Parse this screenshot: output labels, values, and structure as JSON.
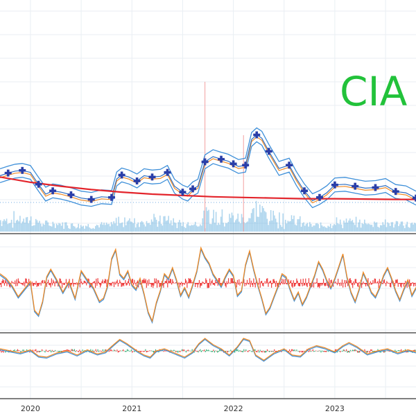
{
  "ticker": "CIA",
  "colors": {
    "ticker": "#22c23a",
    "trend": "#e3242b",
    "band": "#3d8fd9",
    "fast": "#f08a24",
    "marker": "#2a3ea8",
    "volume": "#6fb4e0",
    "histogram": "#ee3b3b",
    "grid": "#e9eef3",
    "separator": "#555555"
  },
  "chart_data": {
    "type": "line",
    "x_ticks": [
      "2020",
      "2021",
      "2022",
      "2023"
    ],
    "x_range": [
      2019.7,
      2023.8
    ],
    "panels": [
      {
        "name": "price",
        "series": [
          {
            "x": [
              2019.7,
              2019.78,
              2019.85,
              2019.92,
              2020.0,
              2020.08,
              2020.15,
              2020.22,
              2020.3,
              2020.4,
              2020.5,
              2020.6,
              2020.7,
              2020.8,
              2020.85,
              2020.9,
              2020.97,
              2021.05,
              2021.12,
              2021.2,
              2021.28,
              2021.35,
              2021.42,
              2021.5,
              2021.55,
              2021.6,
              2021.65,
              2021.72,
              2021.8,
              2021.88,
              2021.95,
              2022.0,
              2022.05,
              2022.12,
              2022.18,
              2022.23,
              2022.28,
              2022.35,
              2022.45,
              2022.55,
              2022.62,
              2022.7,
              2022.78,
              2022.85,
              2022.92,
              2023.0,
              2023.1,
              2023.2,
              2023.3,
              2023.4,
              2023.5,
              2023.6,
              2023.7,
              2023.8
            ],
            "y": [
              6.8,
              7.2,
              7.5,
              7.6,
              7.3,
              5.5,
              4.0,
              4.5,
              4.3,
              3.9,
              3.4,
              3.2,
              3.6,
              3.5,
              6.3,
              6.9,
              6.6,
              6.0,
              6.8,
              6.6,
              6.7,
              7.3,
              5.2,
              4.3,
              4.0,
              4.8,
              5.2,
              8.9,
              9.7,
              9.3,
              9.0,
              8.6,
              8.2,
              8.4,
              12.3,
              13.0,
              12.5,
              10.5,
              7.9,
              8.4,
              6.4,
              4.5,
              3.0,
              3.5,
              4.2,
              5.4,
              5.5,
              5.2,
              4.9,
              5.0,
              5.3,
              4.4,
              4.2,
              3.4
            ]
          },
          {
            "x": [
              2019.7,
              2020.0,
              2020.3,
              2020.6,
              2020.9,
              2021.2,
              2021.5,
              2021.8,
              2022.1,
              2022.4,
              2022.7,
              2023.0,
              2023.3,
              2023.6,
              2023.8
            ],
            "y": [
              6.6,
              5.8,
              5.2,
              4.7,
              4.3,
              4.0,
              3.8,
              3.6,
              3.5,
              3.4,
              3.3,
              3.3,
              3.25,
              3.2,
              3.2
            ]
          }
        ]
      },
      {
        "name": "oscillator",
        "series": [
          {
            "x": [
              2019.7,
              2019.76,
              2019.82,
              2019.88,
              2019.94,
              2020.0,
              2020.04,
              2020.08,
              2020.12,
              2020.16,
              2020.2,
              2020.26,
              2020.32,
              2020.38,
              2020.44,
              2020.5,
              2020.56,
              2020.62,
              2020.68,
              2020.72,
              2020.76,
              2020.8,
              2020.84,
              2020.88,
              2020.92,
              2020.96,
              2021.0,
              2021.04,
              2021.08,
              2021.12,
              2021.16,
              2021.2,
              2021.24,
              2021.28,
              2021.32,
              2021.36,
              2021.4,
              2021.44,
              2021.48,
              2021.52,
              2021.56,
              2021.6,
              2021.64,
              2021.68,
              2021.72,
              2021.76,
              2021.8,
              2021.84,
              2021.88,
              2021.92,
              2021.96,
              2022.0,
              2022.04,
              2022.08,
              2022.12,
              2022.16,
              2022.2,
              2022.24,
              2022.28,
              2022.32,
              2022.36,
              2022.4,
              2022.44,
              2022.48,
              2022.52,
              2022.56,
              2022.6,
              2022.64,
              2022.68,
              2022.72,
              2022.76,
              2022.8,
              2022.84,
              2022.88,
              2022.92,
              2022.96,
              2023.0,
              2023.04,
              2023.08,
              2023.12,
              2023.16,
              2023.2,
              2023.24,
              2023.28,
              2023.32,
              2023.36,
              2023.4,
              2023.44,
              2023.48,
              2023.52,
              2023.56,
              2023.6,
              2023.64,
              2023.68,
              2023.72,
              2023.76,
              2023.8
            ],
            "y": [
              0.6,
              0.3,
              -0.2,
              -0.9,
              -0.4,
              0.1,
              -1.8,
              -2.1,
              -1.2,
              0.4,
              0.9,
              0.2,
              -0.6,
              0.1,
              -1.0,
              0.8,
              0.2,
              -0.3,
              -1.2,
              -1.0,
              -0.2,
              1.6,
              2.2,
              0.6,
              0.3,
              0.8,
              -0.1,
              -0.4,
              0.3,
              -0.7,
              -1.9,
              -2.5,
              -1.3,
              -0.5,
              0.6,
              0.3,
              1.0,
              0.2,
              -0.8,
              -0.3,
              -0.9,
              -0.1,
              0.8,
              2.3,
              1.7,
              1.3,
              0.6,
              0.2,
              -0.2,
              0.4,
              0.9,
              0.5,
              -0.8,
              -0.5,
              1.2,
              2.1,
              0.9,
              -0.1,
              -1.0,
              -2.0,
              -1.6,
              -0.9,
              -0.2,
              0.6,
              0.4,
              -0.4,
              -1.1,
              -0.6,
              -1.4,
              -0.9,
              -0.2,
              0.5,
              1.4,
              0.9,
              0.2,
              -0.3,
              0.3,
              1.1,
              1.9,
              0.4,
              -0.6,
              -1.2,
              -0.4,
              0.7,
              0.1,
              -0.6,
              -0.9,
              -0.3,
              0.5,
              1.0,
              0.3,
              -0.5,
              -1.1,
              -0.4,
              0.2,
              -0.8,
              -0.3
            ]
          }
        ]
      },
      {
        "name": "momentum",
        "series": [
          {
            "x": [
              2019.7,
              2019.8,
              2019.9,
              2020.0,
              2020.08,
              2020.16,
              2020.26,
              2020.36,
              2020.46,
              2020.56,
              2020.66,
              2020.74,
              2020.82,
              2020.88,
              2020.95,
              2021.05,
              2021.12,
              2021.18,
              2021.24,
              2021.32,
              2021.42,
              2021.52,
              2021.6,
              2021.66,
              2021.72,
              2021.8,
              2021.88,
              2021.96,
              2022.04,
              2022.1,
              2022.16,
              2022.22,
              2022.3,
              2022.4,
              2022.5,
              2022.58,
              2022.66,
              2022.74,
              2022.82,
              2022.9,
              2023.0,
              2023.08,
              2023.14,
              2023.22,
              2023.32,
              2023.42,
              2023.52,
              2023.62,
              2023.72,
              2023.8
            ],
            "y": [
              0.1,
              0.0,
              -0.1,
              0.05,
              -0.25,
              -0.3,
              -0.1,
              0.0,
              -0.2,
              0.05,
              -0.15,
              -0.05,
              0.3,
              0.55,
              0.35,
              0.0,
              -0.2,
              -0.3,
              0.0,
              0.1,
              -0.1,
              -0.3,
              -0.05,
              0.35,
              0.6,
              0.3,
              0.1,
              -0.2,
              0.2,
              0.6,
              0.5,
              -0.2,
              -0.45,
              -0.1,
              0.1,
              -0.2,
              -0.25,
              0.1,
              0.25,
              0.15,
              -0.05,
              0.25,
              0.4,
              0.2,
              -0.15,
              0.0,
              0.1,
              -0.1,
              0.05,
              -0.05
            ]
          }
        ]
      }
    ]
  }
}
